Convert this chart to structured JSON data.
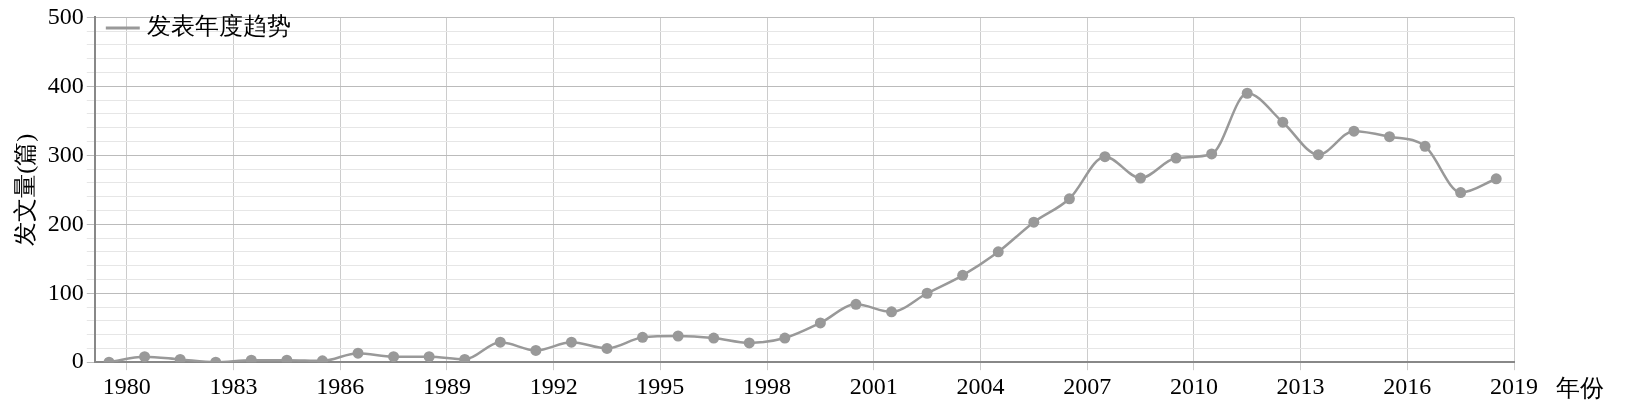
{
  "chart_data": {
    "type": "line",
    "xlabel": "年份",
    "ylabel": "发文量(篇)",
    "x": [
      1979.5,
      1980.5,
      1981.5,
      1982.5,
      1983.5,
      1984.5,
      1985.5,
      1986.5,
      1987.5,
      1988.5,
      1989.5,
      1990.5,
      1991.5,
      1992.5,
      1993.5,
      1994.5,
      1995.5,
      1996.5,
      1997.5,
      1998.5,
      1999.5,
      2000.5,
      2001.5,
      2002.5,
      2003.5,
      2004.5,
      2005.5,
      2006.5,
      2007.5,
      2008.5,
      2009.5,
      2010.5,
      2011.5,
      2012.5,
      2013.5,
      2014.5,
      2015.5,
      2016.5,
      2017.5,
      2018.5
    ],
    "series": [
      {
        "name": "发表年度趋势",
        "color": "#999999",
        "values": [
          0,
          8,
          4,
          0,
          3,
          3,
          2,
          13,
          8,
          8,
          4,
          29,
          17,
          29,
          20,
          36,
          38,
          35,
          28,
          35,
          57,
          84,
          73,
          100,
          126,
          160,
          203,
          237,
          298,
          267,
          296,
          302,
          390,
          348,
          301,
          335,
          327,
          313,
          246,
          266
        ]
      }
    ],
    "xlim": [
      1979.1,
      2019
    ],
    "xticks": [
      1980,
      1983,
      1986,
      1989,
      1992,
      1995,
      1998,
      2001,
      2004,
      2007,
      2010,
      2013,
      2016,
      2019
    ],
    "ylim": [
      0,
      500
    ],
    "yticks": [
      0,
      {
        "value": 20,
        "label": null
      },
      {
        "value": 40,
        "label": null
      },
      {
        "value": 60,
        "label": null
      },
      {
        "value": 80,
        "label": null
      },
      100,
      {
        "value": 120,
        "label": null
      },
      {
        "value": 140,
        "label": null
      },
      {
        "value": 160,
        "label": null
      },
      {
        "value": 180,
        "label": null
      },
      200,
      {
        "value": 220,
        "label": null
      },
      {
        "value": 240,
        "label": null
      },
      {
        "value": 260,
        "label": null
      },
      {
        "value": 280,
        "label": null
      },
      300,
      {
        "value": 320,
        "label": null
      },
      {
        "value": 340,
        "label": null
      },
      {
        "value": 360,
        "label": null
      },
      {
        "value": 380,
        "label": null
      },
      400,
      {
        "value": 420,
        "label": null
      },
      {
        "value": 440,
        "label": null
      },
      {
        "value": 460,
        "label": null
      },
      {
        "value": 480,
        "label": null
      },
      500
    ],
    "grid": true,
    "legend": "top left",
    "marker": "circle",
    "line_style": "solid"
  }
}
